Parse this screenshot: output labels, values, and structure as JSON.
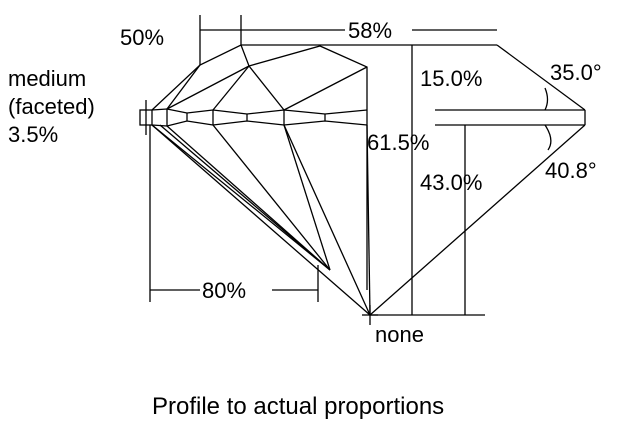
{
  "labels": {
    "crown_height_top": "50%",
    "table": "58%",
    "girdle_line1": "medium",
    "girdle_line2": "(faceted)",
    "girdle_pct": "3.5%",
    "crown_height": "15.0%",
    "crown_angle": "35.0°",
    "total_depth": "61.5%",
    "pavilion_depth": "43.0%",
    "pavilion_angle": "40.8°",
    "lower_half": "80%",
    "culet": "none"
  },
  "caption": "Profile to actual proportions"
}
